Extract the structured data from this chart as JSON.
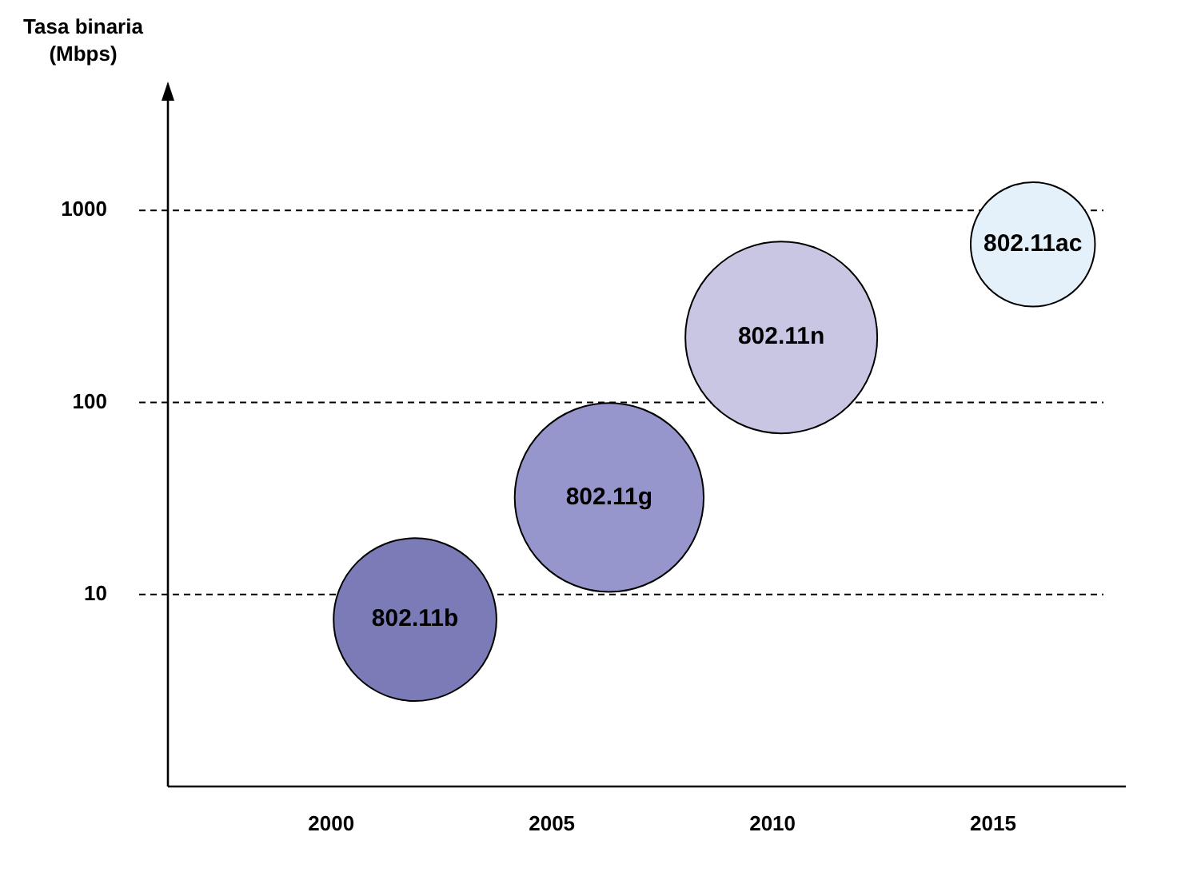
{
  "chart_data": {
    "type": "bubble",
    "ylabel": "Tasa binaria (Mbps)",
    "log": "y",
    "grid": "y",
    "legend": false,
    "xlim": [
      1996.3,
      2017.5
    ],
    "xticks": [
      2000,
      2005,
      2010,
      2015
    ],
    "ylim": [
      1,
      3870
    ],
    "yticks": [
      10,
      100,
      1000
    ],
    "series": [
      {
        "name": "802.11b",
        "color": "#7b7bb8",
        "x": [
          2001.9
        ],
        "values": [
          7.4
        ],
        "sizes": [
          0.72
        ]
      },
      {
        "name": "802.11g",
        "color": "#9696cc",
        "x": [
          2006.3
        ],
        "values": [
          32
        ],
        "sizes": [
          0.97
        ]
      },
      {
        "name": "802.11n",
        "color": "#c9c6e3",
        "x": [
          2010.2
        ],
        "values": [
          218
        ],
        "sizes": [
          1
        ]
      },
      {
        "name": "802.11ac",
        "color": "#e4f1fa",
        "x": [
          2015.9
        ],
        "values": [
          665
        ],
        "sizes": [
          0.42
        ]
      }
    ]
  }
}
